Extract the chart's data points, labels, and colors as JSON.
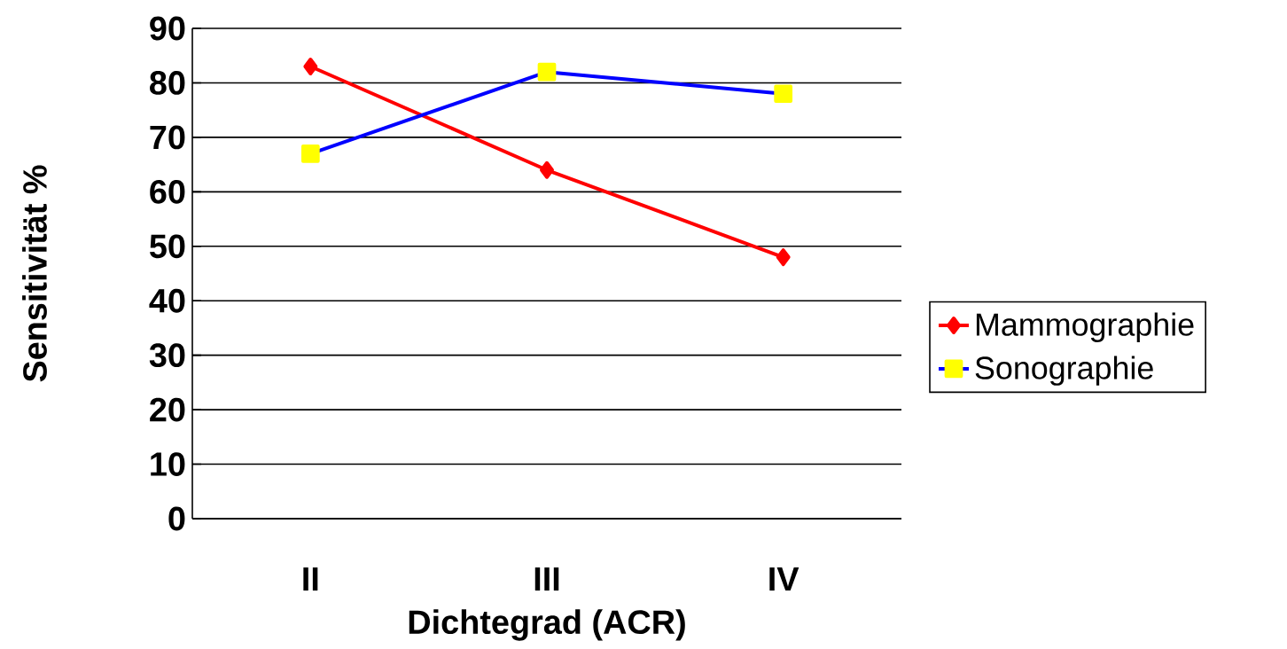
{
  "chart_data": {
    "type": "line",
    "xlabel": "Dichtegrad (ACR)",
    "ylabel": "Sensitivität %",
    "categories": [
      "II",
      "III",
      "IV"
    ],
    "series": [
      {
        "name": "Mammographie",
        "color": "#ff0000",
        "marker": "diamond",
        "values": [
          83,
          64,
          48
        ]
      },
      {
        "name": "Sonographie",
        "color": "#0000ff",
        "colors": [
          "#ffff00",
          "#ffff00",
          "#ffff00"
        ],
        "marker": "square",
        "values": [
          67,
          82,
          78
        ]
      }
    ],
    "ylim": [
      0,
      90
    ],
    "yticks": [
      0,
      10,
      20,
      30,
      40,
      50,
      60,
      70,
      80,
      90
    ],
    "grid": "y",
    "legend": "right",
    "line_style": "solid"
  }
}
